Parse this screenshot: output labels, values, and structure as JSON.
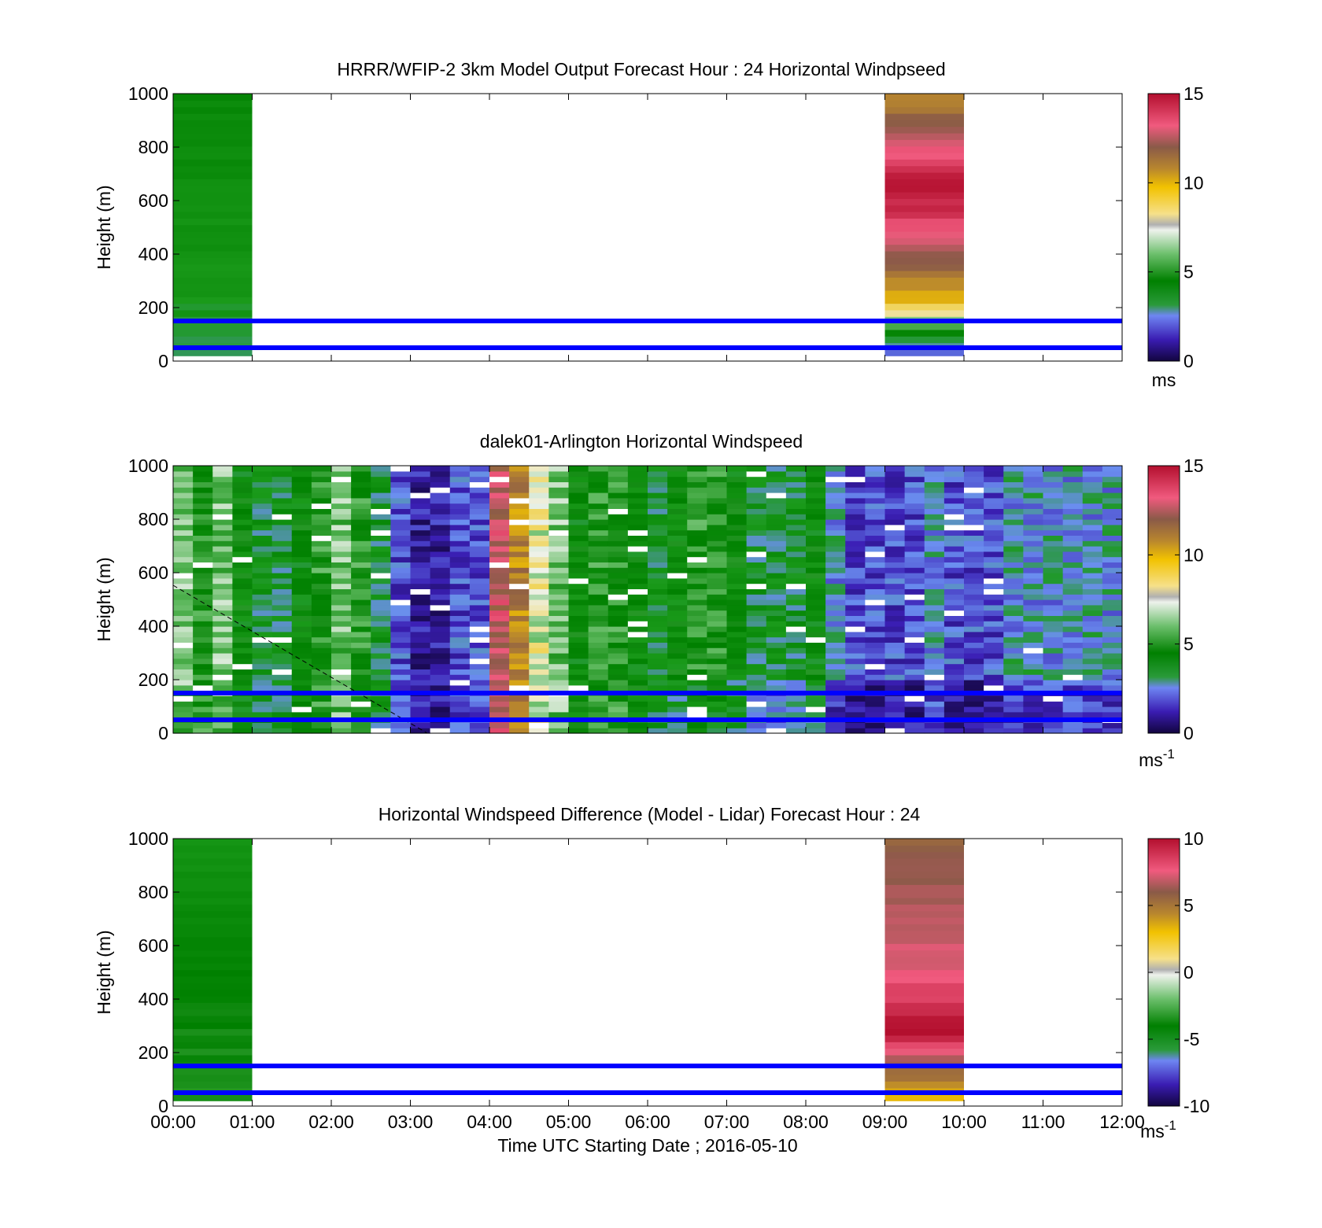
{
  "figure": {
    "xlabel": "Time UTC  Starting Date ; 2016-05-10",
    "x_ticks": [
      "00:00",
      "01:00",
      "02:00",
      "03:00",
      "04:00",
      "05:00",
      "06:00",
      "07:00",
      "08:00",
      "09:00",
      "10:00",
      "11:00",
      "12:00"
    ]
  },
  "colors": {
    "reference_lines": "#0000ff",
    "colormap_stops": [
      "#1a0a55",
      "#3b1fb5",
      "#6b8ff0",
      "#1a9a1a",
      "#008000",
      "#5cb85c",
      "#eef2ec",
      "#f2c200",
      "#b8862e",
      "#8a5a48",
      "#f05a7e",
      "#b30f2e"
    ]
  },
  "chart_data": [
    {
      "type": "heatmap",
      "title": "HRRR/WFIP-2 3km Model Output   Forecast Hour : 24 Horizontal Windpseed",
      "ylabel": "Height (m)",
      "xlim": [
        "00:00",
        "12:00"
      ],
      "ylim": [
        0,
        1000
      ],
      "y_ticks": [
        0,
        200,
        400,
        600,
        800,
        1000
      ],
      "colorbar": {
        "range": [
          0,
          15
        ],
        "ticks": [
          0,
          5,
          10,
          15
        ],
        "unit": "ms"
      },
      "reference_lines_m": [
        50,
        150
      ],
      "columns": [
        {
          "start": "00:00",
          "end": "01:00",
          "height_range": [
            20,
            1000
          ],
          "dominant_values": [
            4,
            4.5,
            5
          ]
        },
        {
          "start": "09:00",
          "end": "10:00",
          "height_range": [
            20,
            1000
          ],
          "dominant_values": [
            2,
            9,
            12,
            14,
            15,
            13,
            11
          ]
        }
      ]
    },
    {
      "type": "heatmap",
      "title": "dalek01-Arlington  Horizontal Windspeed",
      "ylabel": "Height (m)",
      "xlim": [
        "00:00",
        "12:00"
      ],
      "ylim": [
        0,
        1000
      ],
      "y_ticks": [
        0,
        200,
        400,
        600,
        800,
        1000
      ],
      "colorbar": {
        "range": [
          0,
          15
        ],
        "ticks": [
          0,
          5,
          10,
          15
        ],
        "unit": "ms-1"
      },
      "reference_lines_m": [
        50,
        150
      ],
      "column_interval_minutes": 15,
      "dominant_values_by_column": [
        7,
        6,
        7,
        5,
        4,
        4,
        5,
        6,
        7,
        6,
        4,
        2,
        1,
        1,
        2,
        2,
        13,
        11,
        8,
        7,
        5,
        6,
        6,
        5,
        4,
        5,
        6,
        6,
        5,
        4,
        4,
        4,
        5,
        3,
        2,
        2,
        2,
        2,
        3,
        2,
        2,
        2,
        3,
        3,
        3,
        3,
        3,
        3
      ]
    },
    {
      "type": "heatmap",
      "title": "Horizontal Windspeed Difference (Model - Lidar) Forecast Hour : 24",
      "ylabel": "Height (m)",
      "xlim": [
        "00:00",
        "12:00"
      ],
      "ylim": [
        0,
        1000
      ],
      "y_ticks": [
        0,
        200,
        400,
        600,
        800,
        1000
      ],
      "colorbar": {
        "range": [
          -10,
          10
        ],
        "ticks": [
          -10,
          -5,
          0,
          5,
          10
        ],
        "unit": "ms-1"
      },
      "reference_lines_m": [
        50,
        150
      ],
      "columns": [
        {
          "start": "00:00",
          "end": "01:00",
          "height_range": [
            20,
            1000
          ],
          "dominant_values": [
            -2,
            -3,
            -4
          ]
        },
        {
          "start": "09:00",
          "end": "10:00",
          "height_range": [
            20,
            1000
          ],
          "dominant_values": [
            3,
            10,
            8,
            7,
            6
          ]
        }
      ]
    }
  ],
  "colorbar_labels": {
    "panel1": {
      "ticks": [
        "0",
        "5",
        "10",
        "15"
      ],
      "unit": "ms"
    },
    "panel2": {
      "ticks": [
        "0",
        "5",
        "10",
        "15"
      ],
      "unit": "ms",
      "unit_sup": "-1"
    },
    "panel3": {
      "ticks": [
        "-10",
        "-5",
        "0",
        "5",
        "10"
      ],
      "unit": "ms",
      "unit_sup": "-1"
    }
  }
}
